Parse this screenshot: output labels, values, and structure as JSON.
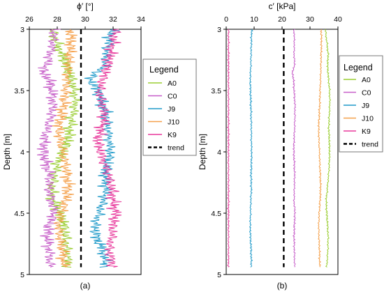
{
  "chart_data": [
    {
      "type": "line",
      "panel_label": "(a)",
      "title": "ϕ′ [°]",
      "xlabel": "ϕ′ [°]",
      "ylabel": "Depth [m]",
      "xlim": [
        26,
        34
      ],
      "ylim": [
        3,
        5
      ],
      "y_inverted": true,
      "x_axis_position": "top",
      "xticks": [
        "26",
        "28",
        "30",
        "32",
        "34"
      ],
      "yticks": [
        "3",
        "3.5",
        "4",
        "4.5",
        "5"
      ],
      "depth_range": [
        3.0,
        4.94
      ],
      "legend": {
        "title": "Legend",
        "position": "right",
        "entries": [
          "A0",
          "C0",
          "J9",
          "J10",
          "K9",
          "trend"
        ]
      },
      "series": [
        {
          "name": "A0",
          "color": "#9acd32",
          "profile": [
            [
              3.0,
              27.6
            ],
            [
              3.1,
              27.9
            ],
            [
              3.2,
              28.3
            ],
            [
              3.3,
              28.7
            ],
            [
              3.4,
              29.0
            ],
            [
              3.5,
              29.2
            ],
            [
              3.6,
              29.3
            ],
            [
              3.7,
              29.1
            ],
            [
              3.8,
              28.9
            ],
            [
              3.9,
              28.8
            ],
            [
              4.0,
              28.4
            ],
            [
              4.1,
              28.0
            ],
            [
              4.2,
              27.8
            ],
            [
              4.3,
              27.6
            ],
            [
              4.4,
              27.7
            ],
            [
              4.5,
              28.2
            ],
            [
              4.6,
              28.5
            ],
            [
              4.7,
              28.6
            ],
            [
              4.8,
              28.7
            ],
            [
              4.94,
              28.8
            ]
          ]
        },
        {
          "name": "C0",
          "color": "#c75fc9",
          "profile": [
            [
              3.0,
              27.8
            ],
            [
              3.1,
              27.7
            ],
            [
              3.2,
              27.5
            ],
            [
              3.3,
              27.2
            ],
            [
              3.35,
              26.9
            ],
            [
              3.4,
              27.4
            ],
            [
              3.5,
              27.6
            ],
            [
              3.6,
              27.7
            ],
            [
              3.7,
              27.6
            ],
            [
              3.8,
              27.3
            ],
            [
              3.9,
              27.1
            ],
            [
              4.0,
              27.0
            ],
            [
              4.1,
              27.2
            ],
            [
              4.2,
              27.5
            ],
            [
              4.3,
              27.4
            ],
            [
              4.4,
              27.6
            ],
            [
              4.5,
              27.8
            ],
            [
              4.6,
              27.4
            ],
            [
              4.7,
              27.3
            ],
            [
              4.8,
              27.4
            ],
            [
              4.94,
              27.5
            ]
          ]
        },
        {
          "name": "J9",
          "color": "#1f9ac9",
          "profile": [
            [
              3.0,
              31.9
            ],
            [
              3.1,
              31.7
            ],
            [
              3.2,
              31.5
            ],
            [
              3.3,
              31.4
            ],
            [
              3.4,
              30.3
            ],
            [
              3.5,
              30.9
            ],
            [
              3.6,
              31.2
            ],
            [
              3.7,
              31.5
            ],
            [
              3.8,
              31.6
            ],
            [
              3.9,
              31.7
            ],
            [
              4.0,
              31.8
            ],
            [
              4.1,
              31.6
            ],
            [
              4.2,
              31.4
            ],
            [
              4.3,
              31.5
            ],
            [
              4.4,
              31.3
            ],
            [
              4.5,
              31.0
            ],
            [
              4.6,
              30.7
            ],
            [
              4.7,
              30.8
            ],
            [
              4.8,
              31.3
            ],
            [
              4.94,
              31.5
            ]
          ]
        },
        {
          "name": "J10",
          "color": "#f5a04a",
          "profile": [
            [
              3.0,
              28.9
            ],
            [
              3.1,
              29.0
            ],
            [
              3.2,
              28.9
            ],
            [
              3.3,
              28.8
            ],
            [
              3.4,
              28.7
            ],
            [
              3.5,
              28.6
            ],
            [
              3.6,
              28.5
            ],
            [
              3.7,
              28.3
            ],
            [
              3.8,
              28.1
            ],
            [
              3.9,
              28.2
            ],
            [
              4.0,
              28.4
            ],
            [
              4.1,
              28.6
            ],
            [
              4.2,
              28.7
            ],
            [
              4.3,
              28.8
            ],
            [
              4.4,
              28.6
            ],
            [
              4.5,
              28.3
            ],
            [
              4.6,
              28.1
            ],
            [
              4.7,
              28.2
            ],
            [
              4.8,
              28.4
            ],
            [
              4.94,
              28.5
            ]
          ]
        },
        {
          "name": "K9",
          "color": "#e8399c",
          "profile": [
            [
              3.0,
              32.2
            ],
            [
              3.1,
              32.0
            ],
            [
              3.2,
              31.8
            ],
            [
              3.3,
              31.6
            ],
            [
              3.4,
              31.3
            ],
            [
              3.5,
              31.0
            ],
            [
              3.6,
              31.2
            ],
            [
              3.7,
              31.4
            ],
            [
              3.8,
              31.2
            ],
            [
              3.9,
              30.9
            ],
            [
              4.0,
              31.1
            ],
            [
              4.1,
              31.4
            ],
            [
              4.2,
              31.7
            ],
            [
              4.3,
              31.9
            ],
            [
              4.4,
              32.0
            ],
            [
              4.5,
              32.2
            ],
            [
              4.6,
              32.0
            ],
            [
              4.7,
              31.9
            ],
            [
              4.8,
              31.7
            ],
            [
              4.94,
              32.0
            ]
          ]
        },
        {
          "name": "trend",
          "color": "#000000",
          "dashed": true,
          "profile": [
            [
              3.0,
              29.7
            ],
            [
              4.94,
              29.7
            ]
          ]
        }
      ]
    },
    {
      "type": "line",
      "panel_label": "(b)",
      "title": "c′ [kPa]",
      "xlabel": "c′ [kPa]",
      "ylabel": "Depth [m]",
      "xlim": [
        0,
        40
      ],
      "ylim": [
        3,
        5
      ],
      "y_inverted": true,
      "x_axis_position": "top",
      "xticks": [
        "0",
        "10",
        "20",
        "30",
        "40"
      ],
      "yticks": [
        "3",
        "3.5",
        "4",
        "4.5",
        "5"
      ],
      "depth_range": [
        3.0,
        4.94
      ],
      "legend": {
        "title": "Legend",
        "position": "right",
        "entries": [
          "A0",
          "C0",
          "J9",
          "J10",
          "K9",
          "trend"
        ]
      },
      "series": [
        {
          "name": "A0",
          "color": "#9acd32",
          "profile": [
            [
              3.0,
              35.5
            ],
            [
              3.1,
              36.0
            ],
            [
              3.2,
              36.5
            ],
            [
              3.3,
              36.3
            ],
            [
              3.4,
              36.6
            ],
            [
              3.5,
              37.0
            ],
            [
              3.6,
              37.1
            ],
            [
              3.7,
              36.9
            ],
            [
              3.8,
              36.7
            ],
            [
              3.9,
              36.9
            ],
            [
              4.0,
              37.0
            ],
            [
              4.1,
              36.9
            ],
            [
              4.2,
              36.6
            ],
            [
              4.3,
              36.2
            ],
            [
              4.4,
              35.8
            ],
            [
              4.5,
              36.0
            ],
            [
              4.6,
              36.3
            ],
            [
              4.7,
              36.5
            ],
            [
              4.8,
              36.4
            ],
            [
              4.94,
              36.0
            ]
          ]
        },
        {
          "name": "C0",
          "color": "#c75fc9",
          "profile": [
            [
              3.0,
              24.3
            ],
            [
              3.1,
              24.4
            ],
            [
              3.2,
              24.3
            ],
            [
              3.3,
              24.5
            ],
            [
              3.35,
              23.6
            ],
            [
              3.4,
              24.1
            ],
            [
              3.5,
              24.3
            ],
            [
              3.6,
              24.6
            ],
            [
              3.7,
              24.6
            ],
            [
              3.8,
              24.5
            ],
            [
              3.9,
              24.3
            ],
            [
              4.0,
              24.2
            ],
            [
              4.1,
              24.4
            ],
            [
              4.2,
              24.5
            ],
            [
              4.3,
              24.4
            ],
            [
              4.4,
              24.3
            ],
            [
              4.5,
              24.6
            ],
            [
              4.6,
              24.4
            ],
            [
              4.7,
              24.3
            ],
            [
              4.8,
              24.4
            ],
            [
              4.94,
              24.5
            ]
          ]
        },
        {
          "name": "J9",
          "color": "#1f9ac9",
          "profile": [
            [
              3.0,
              9.1
            ],
            [
              3.1,
              9.0
            ],
            [
              3.2,
              8.9
            ],
            [
              3.3,
              8.8
            ],
            [
              3.4,
              8.6
            ],
            [
              3.5,
              8.7
            ],
            [
              3.6,
              8.8
            ],
            [
              3.7,
              8.9
            ],
            [
              3.8,
              9.0
            ],
            [
              3.9,
              9.0
            ],
            [
              4.0,
              9.1
            ],
            [
              4.1,
              9.0
            ],
            [
              4.2,
              8.9
            ],
            [
              4.3,
              9.0
            ],
            [
              4.4,
              8.8
            ],
            [
              4.5,
              8.7
            ],
            [
              4.6,
              8.6
            ],
            [
              4.7,
              8.7
            ],
            [
              4.8,
              8.9
            ],
            [
              4.94,
              9.0
            ]
          ]
        },
        {
          "name": "J10",
          "color": "#f5a04a",
          "profile": [
            [
              3.0,
              34.0
            ],
            [
              3.1,
              34.1
            ],
            [
              3.2,
              34.0
            ],
            [
              3.3,
              33.9
            ],
            [
              3.4,
              33.8
            ],
            [
              3.5,
              33.6
            ],
            [
              3.6,
              33.5
            ],
            [
              3.7,
              33.3
            ],
            [
              3.8,
              33.1
            ],
            [
              3.9,
              33.2
            ],
            [
              4.0,
              33.4
            ],
            [
              4.1,
              33.5
            ],
            [
              4.2,
              33.7
            ],
            [
              4.3,
              33.8
            ],
            [
              4.4,
              33.6
            ],
            [
              4.5,
              33.3
            ],
            [
              4.6,
              33.1
            ],
            [
              4.7,
              33.2
            ],
            [
              4.8,
              33.4
            ],
            [
              4.94,
              33.5
            ]
          ]
        },
        {
          "name": "K9",
          "color": "#e8399c",
          "profile": [
            [
              3.0,
              0.8
            ],
            [
              4.94,
              0.8
            ]
          ]
        },
        {
          "name": "trend",
          "color": "#000000",
          "dashed": true,
          "profile": [
            [
              3.0,
              20.6
            ],
            [
              4.94,
              20.6
            ]
          ]
        }
      ]
    }
  ]
}
